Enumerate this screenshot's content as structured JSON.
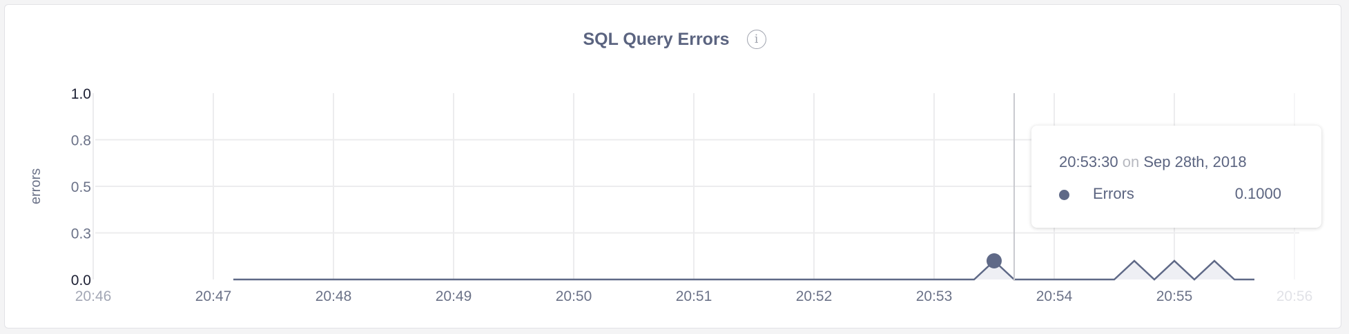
{
  "chart_data": {
    "type": "area",
    "title": "SQL Query Errors",
    "ylabel": "errors",
    "xlabel": "",
    "ylim": [
      0,
      1.0
    ],
    "yticks": [
      0,
      0.25,
      0.5,
      0.75,
      1.0
    ],
    "ytick_labels": [
      "0.0",
      "0.3",
      "0.5",
      "0.8",
      "1.0"
    ],
    "xticks": [
      "20:46",
      "20:47",
      "20:48",
      "20:49",
      "20:50",
      "20:51",
      "20:52",
      "20:53",
      "20:54",
      "20:55",
      "20:56"
    ],
    "xlim": [
      "20:46:00",
      "20:56:00"
    ],
    "grid": true,
    "series": [
      {
        "name": "Errors",
        "color": "#5f6987",
        "fill": "#eeeff4",
        "points": [
          [
            "20:47:10",
            0
          ],
          [
            "20:53:20",
            0
          ],
          [
            "20:53:30",
            0.1
          ],
          [
            "20:53:40",
            0
          ],
          [
            "20:54:30",
            0
          ],
          [
            "20:54:40",
            0.1
          ],
          [
            "20:54:50",
            0
          ],
          [
            "20:55:00",
            0.1
          ],
          [
            "20:55:10",
            0
          ],
          [
            "20:55:20",
            0.1
          ],
          [
            "20:55:30",
            0
          ],
          [
            "20:55:40",
            0
          ]
        ]
      }
    ]
  },
  "info_icon": "info-circle-icon",
  "tooltip": {
    "time": "20:53:30",
    "on": "on",
    "date": "Sep 28th, 2018",
    "series_name": "Errors",
    "value": "0.1000"
  }
}
